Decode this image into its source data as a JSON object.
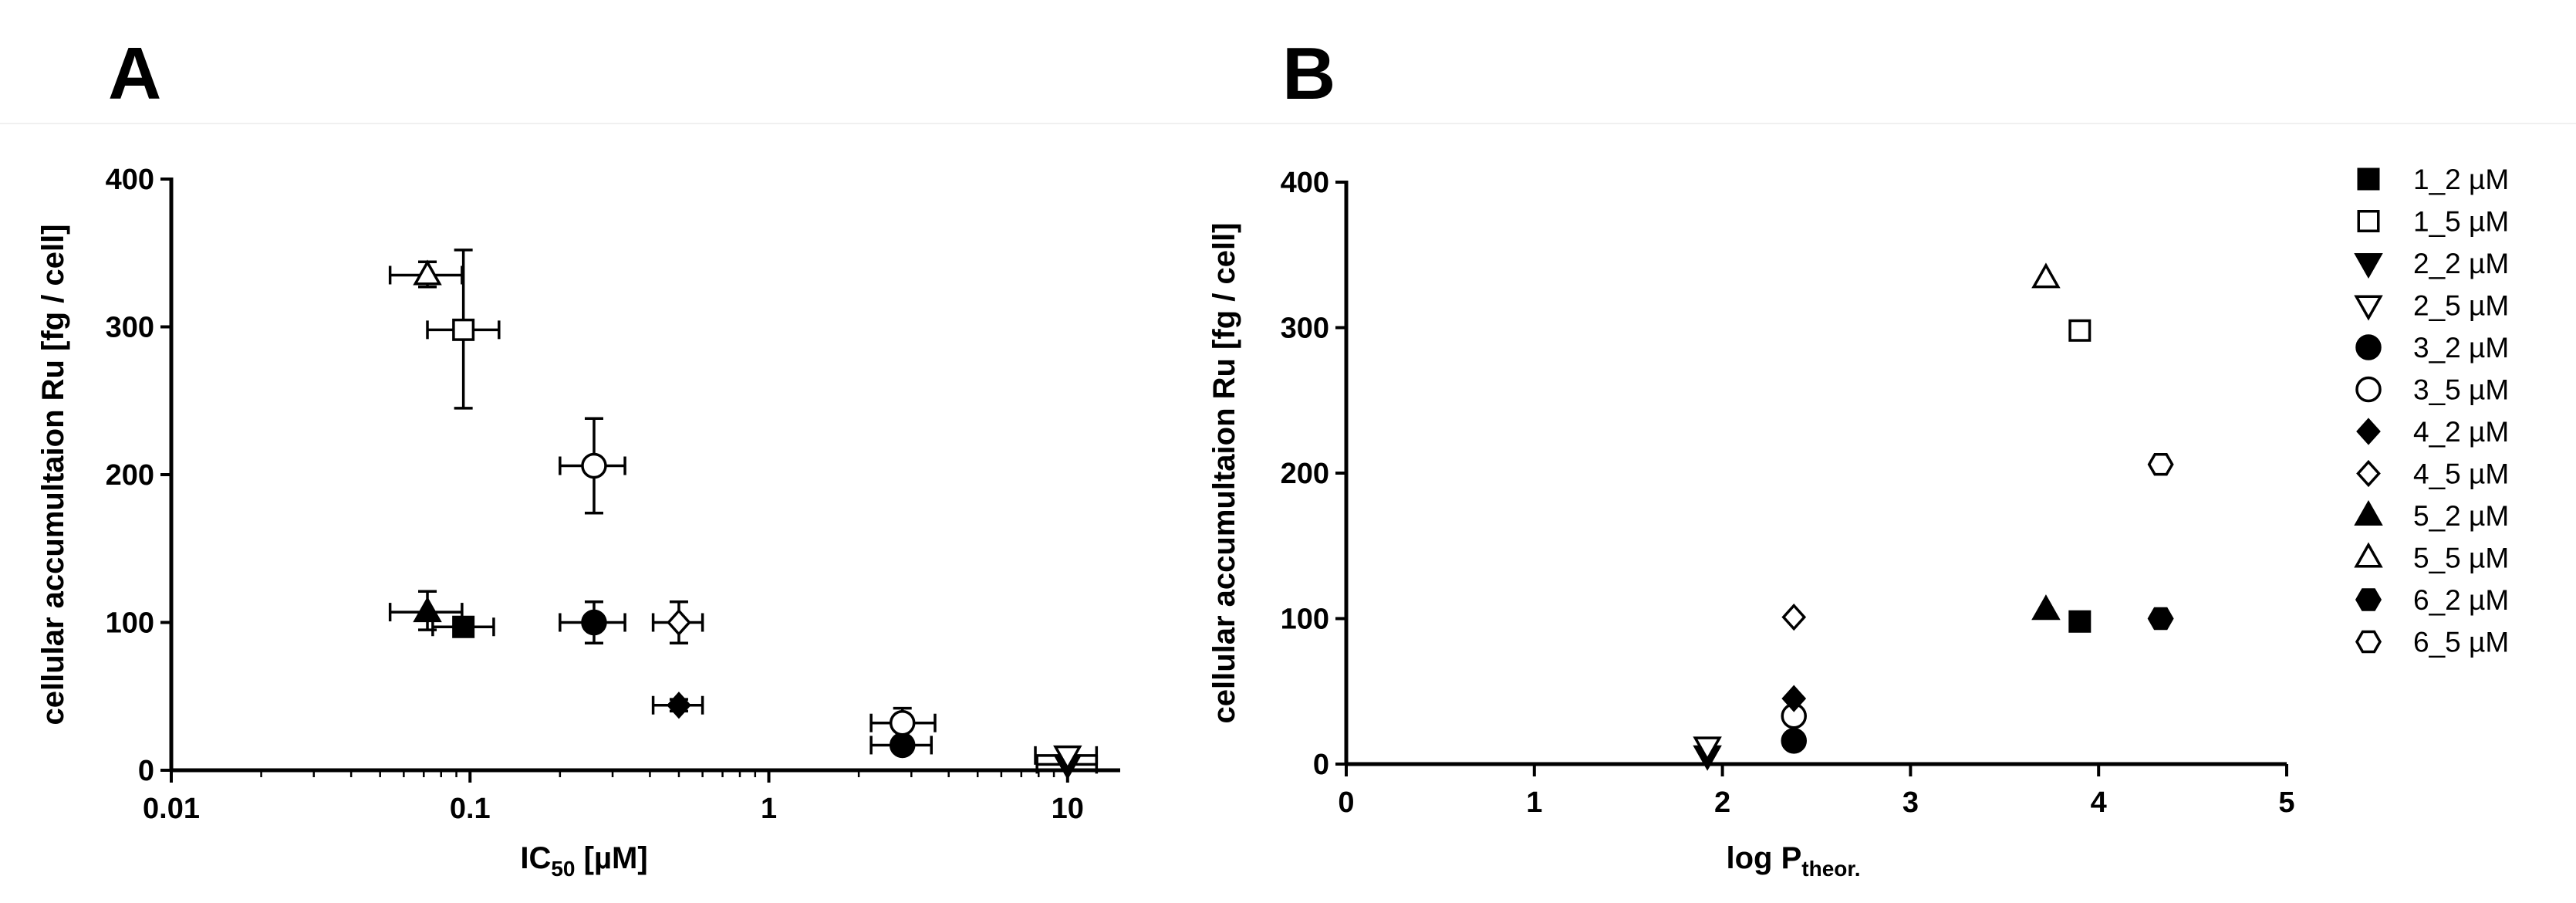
{
  "chart_data": [
    {
      "type": "scatter",
      "panel_label": "A",
      "xlabel": "IC",
      "xlabel_sub": "50",
      "xlabel_suffix": " [µM]",
      "ylabel": "cellular accumultaion Ru [fg / cell]",
      "xscale": "log",
      "xlim": [
        0.01,
        15
      ],
      "ylim": [
        0,
        400
      ],
      "xticks": [
        {
          "value": 0.01,
          "label": "0.01"
        },
        {
          "value": 0.1,
          "label": "0.1"
        },
        {
          "value": 1,
          "label": "1"
        },
        {
          "value": 10,
          "label": "10"
        }
      ],
      "yticks": [
        {
          "value": 0,
          "label": "0"
        },
        {
          "value": 100,
          "label": "100"
        },
        {
          "value": 200,
          "label": "200"
        },
        {
          "value": 300,
          "label": "300"
        },
        {
          "value": 400,
          "label": "400"
        }
      ],
      "grid": false,
      "points": [
        {
          "series": "1_2 µM",
          "x": 0.095,
          "y": 97,
          "xerr": [
            0.075,
            0.12
          ],
          "yerr": [
            92,
            103
          ]
        },
        {
          "series": "1_5 µM",
          "x": 0.095,
          "y": 298,
          "xerr": [
            0.072,
            0.125
          ],
          "yerr": [
            245,
            352
          ]
        },
        {
          "series": "2_2 µM",
          "x": 10,
          "y": 4,
          "xerr": [
            7.9,
            12.5
          ],
          "yerr": [
            0,
            8
          ]
        },
        {
          "series": "2_5 µM",
          "x": 10,
          "y": 10,
          "xerr": [
            7.8,
            12.5
          ],
          "yerr": [
            5,
            15
          ]
        },
        {
          "series": "3_2 µM",
          "x": 2.8,
          "y": 17,
          "xerr": [
            2.2,
            3.5
          ],
          "yerr": [
            14,
            20
          ]
        },
        {
          "series": "3_2 µM",
          "x": 0.26,
          "y": 100,
          "xerr": [
            0.2,
            0.33
          ],
          "yerr": [
            86,
            114
          ]
        },
        {
          "series": "3_5 µM",
          "x": 0.26,
          "y": 206,
          "xerr": [
            0.2,
            0.33
          ],
          "yerr": [
            174,
            238
          ]
        },
        {
          "series": "3_5 µM",
          "x": 2.8,
          "y": 32,
          "xerr": [
            2.2,
            3.6
          ],
          "yerr": [
            22,
            42
          ]
        },
        {
          "series": "4_2 µM",
          "x": 0.5,
          "y": 44,
          "xerr": [
            0.41,
            0.6
          ],
          "yerr": [
            40,
            48
          ]
        },
        {
          "series": "4_5 µM",
          "x": 0.5,
          "y": 100,
          "xerr": [
            0.41,
            0.6
          ],
          "yerr": [
            86,
            114
          ]
        },
        {
          "series": "5_2 µM",
          "x": 0.072,
          "y": 107,
          "xerr": [
            0.054,
            0.094
          ],
          "yerr": [
            95,
            121
          ]
        },
        {
          "series": "5_5 µM",
          "x": 0.072,
          "y": 335,
          "xerr": [
            0.054,
            0.094
          ],
          "yerr": [
            327,
            344
          ]
        }
      ]
    },
    {
      "type": "scatter",
      "panel_label": "B",
      "xlabel": "log P",
      "xlabel_sub": "theor.",
      "ylabel": "cellular accumultaion Ru [fg / cell]",
      "xlim": [
        0,
        5
      ],
      "ylim": [
        0,
        400
      ],
      "xticks": [
        {
          "value": 0,
          "label": "0"
        },
        {
          "value": 1,
          "label": "1"
        },
        {
          "value": 2,
          "label": "2"
        },
        {
          "value": 3,
          "label": "3"
        },
        {
          "value": 4,
          "label": "4"
        },
        {
          "value": 5,
          "label": "5"
        }
      ],
      "yticks": [
        {
          "value": 0,
          "label": "0"
        },
        {
          "value": 100,
          "label": "100"
        },
        {
          "value": 200,
          "label": "200"
        },
        {
          "value": 300,
          "label": "300"
        },
        {
          "value": 400,
          "label": "400"
        }
      ],
      "grid": false,
      "legend_position": "right",
      "points": [
        {
          "series": "1_2 µM",
          "x": 3.9,
          "y": 98
        },
        {
          "series": "1_5 µM",
          "x": 3.9,
          "y": 298
        },
        {
          "series": "2_2 µM",
          "x": 1.92,
          "y": 6
        },
        {
          "series": "2_5 µM",
          "x": 1.92,
          "y": 12
        },
        {
          "series": "3_2 µM",
          "x": 2.38,
          "y": 16
        },
        {
          "series": "3_5 µM",
          "x": 2.38,
          "y": 33
        },
        {
          "series": "4_2 µM",
          "x": 2.38,
          "y": 45
        },
        {
          "series": "4_5 µM",
          "x": 2.38,
          "y": 101
        },
        {
          "series": "5_2 µM",
          "x": 3.72,
          "y": 106
        },
        {
          "series": "5_5 µM",
          "x": 3.72,
          "y": 334
        },
        {
          "series": "6_2 µM",
          "x": 4.33,
          "y": 100
        },
        {
          "series": "6_5 µM",
          "x": 4.33,
          "y": 206
        }
      ]
    }
  ],
  "legend": [
    {
      "label": "1_2 µM",
      "marker": "square-filled"
    },
    {
      "label": "1_5 µM",
      "marker": "square-open"
    },
    {
      "label": "2_2 µM",
      "marker": "triangle-down-filled"
    },
    {
      "label": "2_5 µM",
      "marker": "triangle-down-open"
    },
    {
      "label": "3_2 µM",
      "marker": "circle-filled"
    },
    {
      "label": "3_5 µM",
      "marker": "circle-open"
    },
    {
      "label": "4_2 µM",
      "marker": "diamond-filled"
    },
    {
      "label": "4_5 µM",
      "marker": "diamond-open"
    },
    {
      "label": "5_2 µM",
      "marker": "triangle-up-filled"
    },
    {
      "label": "5_5 µM",
      "marker": "triangle-up-open"
    },
    {
      "label": "6_2 µM",
      "marker": "hexagon-filled"
    },
    {
      "label": "6_5 µM",
      "marker": "hexagon-open"
    }
  ],
  "colors": {
    "ink": "#000000",
    "background": "#ffffff"
  }
}
